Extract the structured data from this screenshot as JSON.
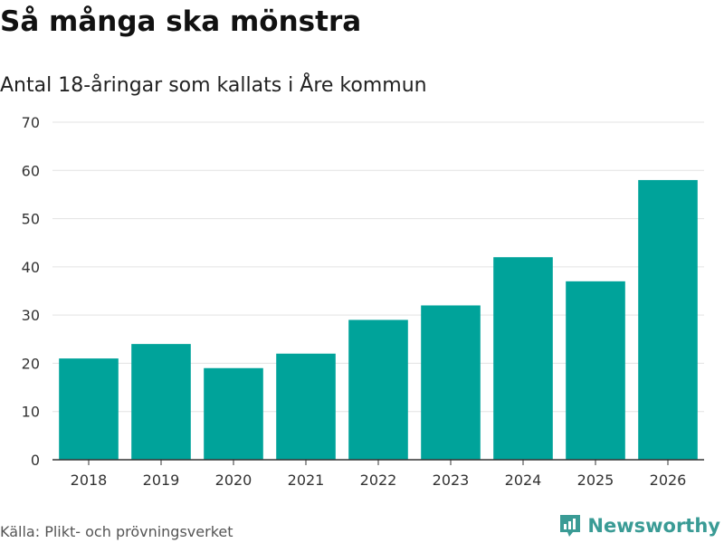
{
  "header": {
    "title": "Så många ska mönstra",
    "subtitle": "Antal 18-åringar som kallats i Åre kommun"
  },
  "footer": {
    "source": "Källa: Plikt- och prövningsverket",
    "brand": "Newsworthy",
    "brand_icon": "newsworthy-logo-icon"
  },
  "colors": {
    "bar": "#00a39a",
    "grid": "#e3e3e3",
    "axis": "#333333",
    "brand": "#3a9b95"
  },
  "chart_data": {
    "type": "bar",
    "title": "Så många ska mönstra",
    "subtitle": "Antal 18-åringar som kallats i Åre kommun",
    "xlabel": "",
    "ylabel": "",
    "categories": [
      "2018",
      "2019",
      "2020",
      "2021",
      "2022",
      "2023",
      "2024",
      "2025",
      "2026"
    ],
    "values": [
      21,
      24,
      19,
      22,
      29,
      32,
      42,
      37,
      58
    ],
    "ylim": [
      0,
      70
    ],
    "yticks": [
      0,
      10,
      20,
      30,
      40,
      50,
      60,
      70
    ],
    "grid": true,
    "legend": "none"
  }
}
